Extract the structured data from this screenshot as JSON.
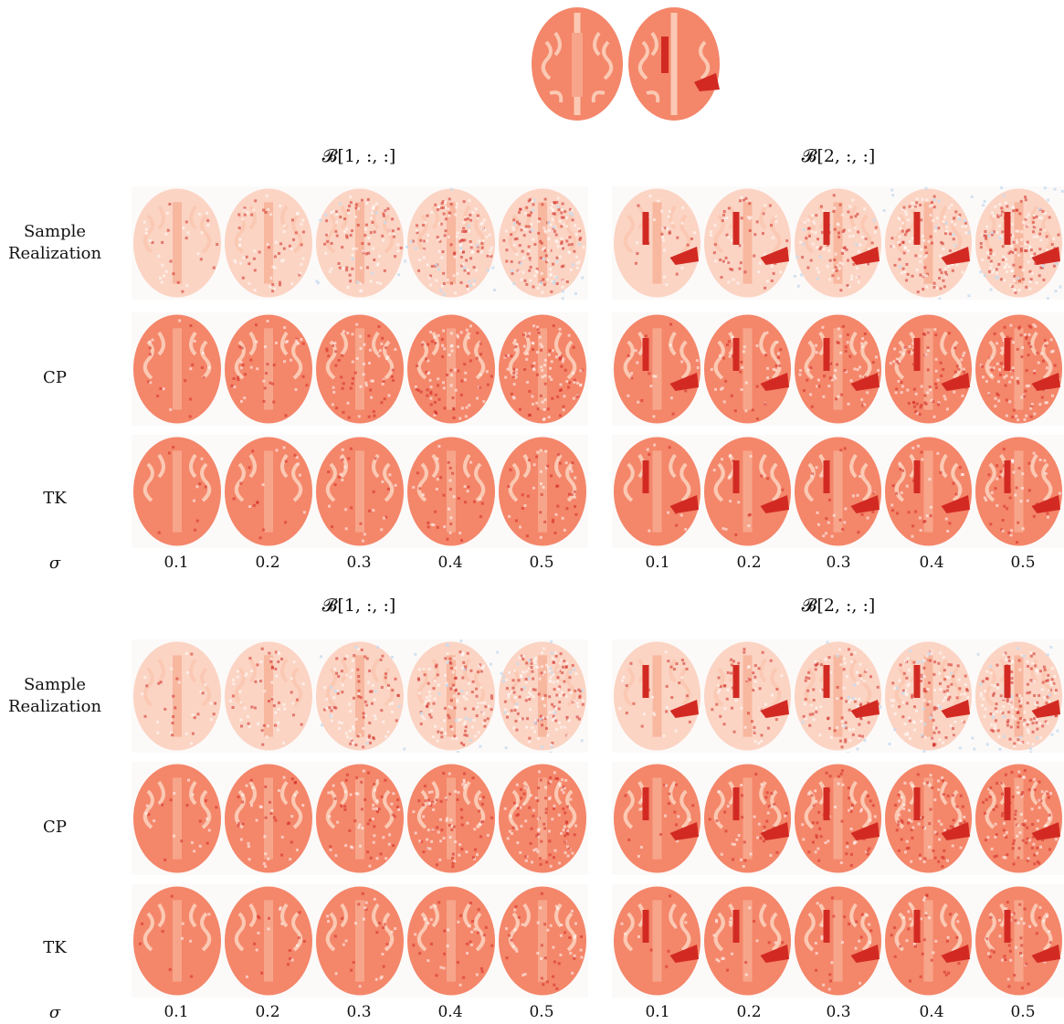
{
  "reference_panel": {
    "images": [
      "brain-slice-ground-truth-1",
      "brain-slice-ground-truth-2"
    ]
  },
  "sections": [
    {
      "col_titles": [
        "𝓑[1, :, :]",
        "𝓑[2, :, :]"
      ],
      "row_labels": [
        {
          "line1": "Sample",
          "line2": "Realization"
        },
        {
          "line1": "CP",
          "line2": ""
        },
        {
          "line1": "TK",
          "line2": ""
        }
      ],
      "sigma_label": "σ",
      "sigma_ticks": [
        "0.1",
        "0.2",
        "0.3",
        "0.4",
        "0.5",
        "0.1",
        "0.2",
        "0.3",
        "0.4",
        "0.5"
      ]
    },
    {
      "col_titles": [
        "𝓑[1, :, :]",
        "𝓑[2, :, :]"
      ],
      "row_labels": [
        {
          "line1": "Sample",
          "line2": "Realization"
        },
        {
          "line1": "CP",
          "line2": ""
        },
        {
          "line1": "TK",
          "line2": ""
        }
      ],
      "sigma_label": "σ",
      "sigma_ticks": [
        "0.1",
        "0.2",
        "0.3",
        "0.4",
        "0.5",
        "0.1",
        "0.2",
        "0.3",
        "0.4",
        "0.5"
      ]
    }
  ],
  "colors": {
    "brain_tissue": "#f4866a",
    "gray_matter": "#fbc9b3",
    "lesion": "#d22a22",
    "noise_negative": "#c7dcef"
  }
}
